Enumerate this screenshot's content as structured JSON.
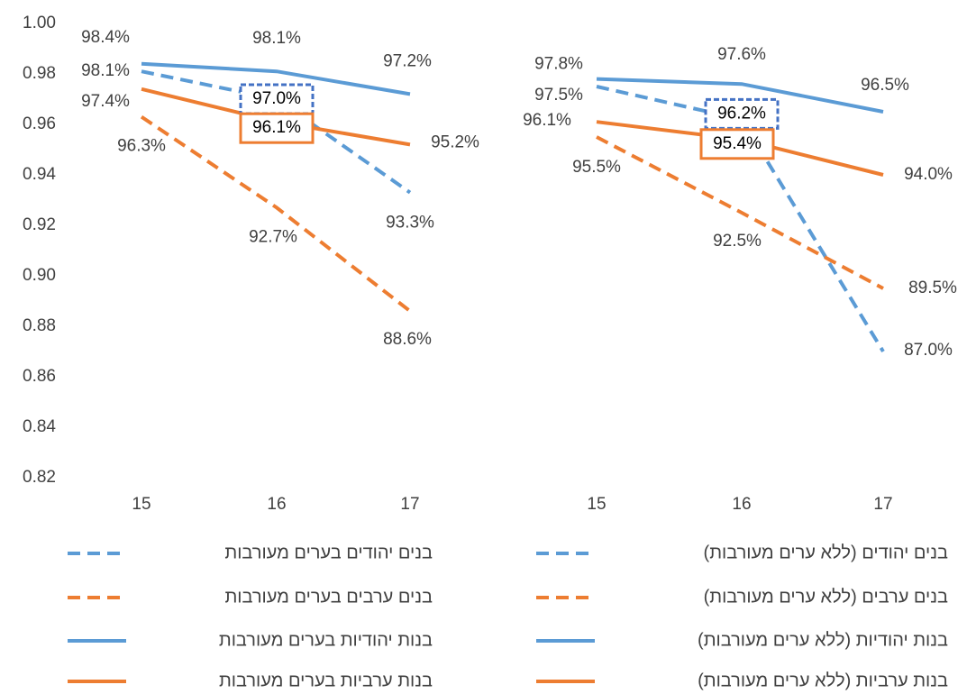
{
  "chart_data": [
    {
      "type": "line",
      "categories": [
        "15",
        "16",
        "17"
      ],
      "ylim": [
        0.82,
        1.0
      ],
      "yticks": [
        {
          "value": 0.82,
          "label": "0.82"
        },
        {
          "value": 0.84,
          "label": "0.84"
        },
        {
          "value": 0.86,
          "label": "0.86"
        },
        {
          "value": 0.88,
          "label": "0.88"
        },
        {
          "value": 0.9,
          "label": "0.90"
        },
        {
          "value": 0.92,
          "label": "0.92"
        },
        {
          "value": 0.94,
          "label": "0.94"
        },
        {
          "value": 0.96,
          "label": "0.96"
        },
        {
          "value": 0.98,
          "label": "0.98"
        },
        {
          "value": 1.0,
          "label": "1.00"
        }
      ],
      "series": [
        {
          "name": "בנים יהודים בערים מעורבות",
          "color": "#5b9bd5",
          "dashed": true,
          "values": [
            0.981,
            0.97,
            0.933
          ],
          "value_labels": [
            "98.1%",
            "97.0%",
            "93.3%"
          ]
        },
        {
          "name": "בנים ערבים בערים מעורבות",
          "color": "#ed7d31",
          "dashed": true,
          "values": [
            0.963,
            0.927,
            0.886
          ],
          "value_labels": [
            "96.3%",
            "92.7%",
            "88.6%"
          ]
        },
        {
          "name": "בנות יהודיות בערים מעורבות",
          "color": "#5b9bd5",
          "dashed": false,
          "values": [
            0.984,
            0.981,
            0.972
          ],
          "value_labels": [
            "98.4%",
            "98.1%",
            "97.2%"
          ]
        },
        {
          "name": "בנות ערביות בערים מעורבות",
          "color": "#ed7d31",
          "dashed": false,
          "values": [
            0.974,
            0.961,
            0.952
          ],
          "value_labels": [
            "97.4%",
            "96.1%",
            "95.2%"
          ]
        }
      ]
    },
    {
      "type": "line",
      "categories": [
        "15",
        "16",
        "17"
      ],
      "ylim": [
        0.82,
        1.0
      ],
      "series": [
        {
          "name": "בנים יהודים (ללא ערים מעורבות)",
          "color": "#5b9bd5",
          "dashed": true,
          "values": [
            0.975,
            0.962,
            0.87
          ],
          "value_labels": [
            "97.5%",
            "96.2%",
            "87.0%"
          ]
        },
        {
          "name": "בנים ערבים (ללא ערים מעורבות)",
          "color": "#ed7d31",
          "dashed": true,
          "values": [
            0.955,
            0.925,
            0.895
          ],
          "value_labels": [
            "95.5%",
            "92.5%",
            "89.5%"
          ]
        },
        {
          "name": "בנות יהודיות (ללא ערים מעורבות)",
          "color": "#5b9bd5",
          "dashed": false,
          "values": [
            0.978,
            0.976,
            0.965
          ],
          "value_labels": [
            "97.8%",
            "97.6%",
            "96.5%"
          ]
        },
        {
          "name": "בנות ערביות (ללא ערים מעורבות)",
          "color": "#ed7d31",
          "dashed": false,
          "values": [
            0.961,
            0.954,
            0.94
          ],
          "value_labels": [
            "96.1%",
            "95.4%",
            "94.0%"
          ]
        }
      ]
    }
  ]
}
